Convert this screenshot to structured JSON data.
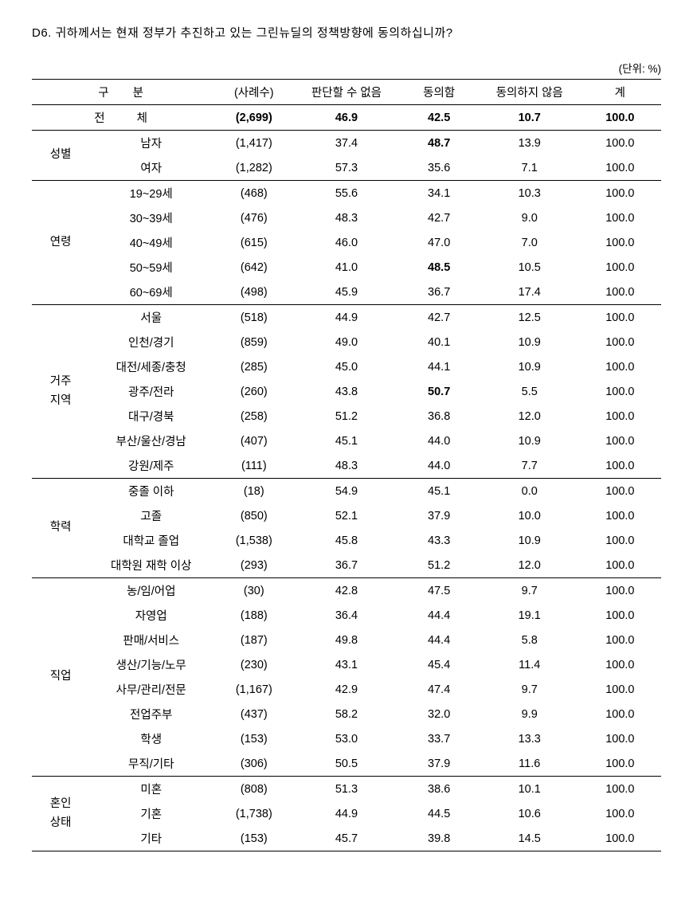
{
  "title": "D6. 귀하께서는 현재 정부가 추진하고 있는 그린뉴딜의 정책방향에 동의하십니까?",
  "unit": "(단위: %)",
  "headers": {
    "category": "구분",
    "n": "(사례수)",
    "v1": "판단할 수 없음",
    "v2": "동의함",
    "v3": "동의하지 않음",
    "total": "계"
  },
  "total_row": {
    "label": "전체",
    "n": "(2,699)",
    "v1": "46.9",
    "v2": "42.5",
    "v3": "10.7",
    "total": "100.0"
  },
  "groups": [
    {
      "label": "성별",
      "rows": [
        {
          "sub": "남자",
          "n": "(1,417)",
          "v1": "37.4",
          "v2": "48.7",
          "v2_bold": true,
          "v3": "13.9",
          "total": "100.0"
        },
        {
          "sub": "여자",
          "n": "(1,282)",
          "v1": "57.3",
          "v2": "35.6",
          "v3": "7.1",
          "total": "100.0"
        }
      ]
    },
    {
      "label": "연령",
      "rows": [
        {
          "sub": "19~29세",
          "n": "(468)",
          "v1": "55.6",
          "v2": "34.1",
          "v3": "10.3",
          "total": "100.0"
        },
        {
          "sub": "30~39세",
          "n": "(476)",
          "v1": "48.3",
          "v2": "42.7",
          "v3": "9.0",
          "total": "100.0"
        },
        {
          "sub": "40~49세",
          "n": "(615)",
          "v1": "46.0",
          "v2": "47.0",
          "v3": "7.0",
          "total": "100.0"
        },
        {
          "sub": "50~59세",
          "n": "(642)",
          "v1": "41.0",
          "v2": "48.5",
          "v2_bold": true,
          "v3": "10.5",
          "total": "100.0"
        },
        {
          "sub": "60~69세",
          "n": "(498)",
          "v1": "45.9",
          "v2": "36.7",
          "v3": "17.4",
          "total": "100.0"
        }
      ]
    },
    {
      "label": "거주\n지역",
      "rows": [
        {
          "sub": "서울",
          "n": "(518)",
          "v1": "44.9",
          "v2": "42.7",
          "v3": "12.5",
          "total": "100.0"
        },
        {
          "sub": "인천/경기",
          "n": "(859)",
          "v1": "49.0",
          "v2": "40.1",
          "v3": "10.9",
          "total": "100.0"
        },
        {
          "sub": "대전/세종/충청",
          "n": "(285)",
          "v1": "45.0",
          "v2": "44.1",
          "v3": "10.9",
          "total": "100.0"
        },
        {
          "sub": "광주/전라",
          "n": "(260)",
          "v1": "43.8",
          "v2": "50.7",
          "v2_bold": true,
          "v3": "5.5",
          "total": "100.0"
        },
        {
          "sub": "대구/경북",
          "n": "(258)",
          "v1": "51.2",
          "v2": "36.8",
          "v3": "12.0",
          "total": "100.0"
        },
        {
          "sub": "부산/울산/경남",
          "n": "(407)",
          "v1": "45.1",
          "v2": "44.0",
          "v3": "10.9",
          "total": "100.0"
        },
        {
          "sub": "강원/제주",
          "n": "(111)",
          "v1": "48.3",
          "v2": "44.0",
          "v3": "7.7",
          "total": "100.0"
        }
      ]
    },
    {
      "label": "학력",
      "rows": [
        {
          "sub": "중졸 이하",
          "n": "(18)",
          "v1": "54.9",
          "v2": "45.1",
          "v3": "0.0",
          "total": "100.0"
        },
        {
          "sub": "고졸",
          "n": "(850)",
          "v1": "52.1",
          "v2": "37.9",
          "v3": "10.0",
          "total": "100.0"
        },
        {
          "sub": "대학교 졸업",
          "n": "(1,538)",
          "v1": "45.8",
          "v2": "43.3",
          "v3": "10.9",
          "total": "100.0"
        },
        {
          "sub": "대학원 재학 이상",
          "n": "(293)",
          "v1": "36.7",
          "v2": "51.2",
          "v3": "12.0",
          "total": "100.0"
        }
      ]
    },
    {
      "label": "직업",
      "rows": [
        {
          "sub": "농/임/어업",
          "n": "(30)",
          "v1": "42.8",
          "v2": "47.5",
          "v3": "9.7",
          "total": "100.0"
        },
        {
          "sub": "자영업",
          "n": "(188)",
          "v1": "36.4",
          "v2": "44.4",
          "v3": "19.1",
          "total": "100.0"
        },
        {
          "sub": "판매/서비스",
          "n": "(187)",
          "v1": "49.8",
          "v2": "44.4",
          "v3": "5.8",
          "total": "100.0"
        },
        {
          "sub": "생산/기능/노무",
          "n": "(230)",
          "v1": "43.1",
          "v2": "45.4",
          "v3": "11.4",
          "total": "100.0"
        },
        {
          "sub": "사무/관리/전문",
          "n": "(1,167)",
          "v1": "42.9",
          "v2": "47.4",
          "v3": "9.7",
          "total": "100.0"
        },
        {
          "sub": "전업주부",
          "n": "(437)",
          "v1": "58.2",
          "v2": "32.0",
          "v3": "9.9",
          "total": "100.0"
        },
        {
          "sub": "학생",
          "n": "(153)",
          "v1": "53.0",
          "v2": "33.7",
          "v3": "13.3",
          "total": "100.0"
        },
        {
          "sub": "무직/기타",
          "n": "(306)",
          "v1": "50.5",
          "v2": "37.9",
          "v3": "11.6",
          "total": "100.0"
        }
      ]
    },
    {
      "label": "혼인\n상태",
      "rows": [
        {
          "sub": "미혼",
          "n": "(808)",
          "v1": "51.3",
          "v2": "38.6",
          "v3": "10.1",
          "total": "100.0"
        },
        {
          "sub": "기혼",
          "n": "(1,738)",
          "v1": "44.9",
          "v2": "44.5",
          "v3": "10.6",
          "total": "100.0"
        },
        {
          "sub": "기타",
          "n": "(153)",
          "v1": "45.7",
          "v2": "39.8",
          "v3": "14.5",
          "total": "100.0"
        }
      ]
    }
  ]
}
